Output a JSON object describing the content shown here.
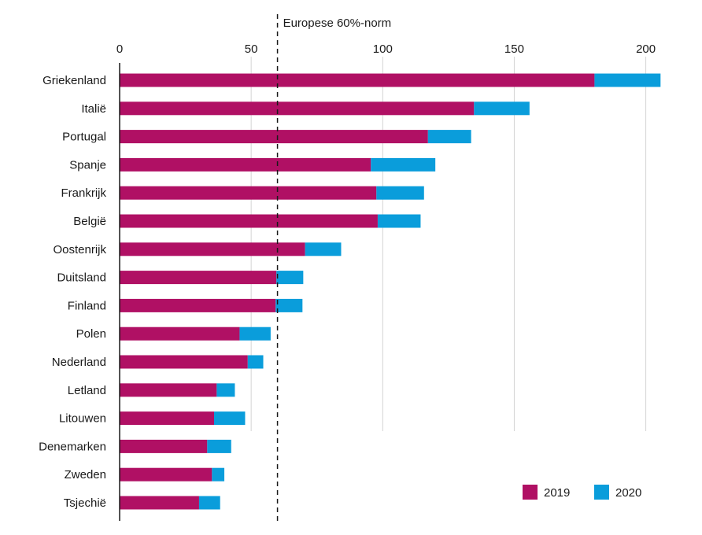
{
  "chart_data": {
    "type": "bar",
    "orientation": "horizontal",
    "stacked": true,
    "title": "",
    "xlabel": "",
    "ylabel": "",
    "xlim": [
      0,
      205
    ],
    "xticks": [
      0,
      50,
      100,
      150,
      200
    ],
    "grid": true,
    "legend_position": "bottom-right",
    "categories": [
      "Griekenland",
      "Italië",
      "Portugal",
      "Spanje",
      "Frankrijk",
      "België",
      "Oostenrijk",
      "Duitsland",
      "Finland",
      "Polen",
      "Nederland",
      "Letland",
      "Litouwen",
      "Denemarken",
      "Zweden",
      "Tsjechië"
    ],
    "series": [
      {
        "name": "2019",
        "color": "#b01064",
        "values": [
          180.5,
          134.7,
          117.2,
          95.5,
          97.6,
          98.1,
          70.5,
          59.6,
          59.3,
          45.6,
          48.7,
          36.9,
          35.9,
          33.3,
          35.1,
          30.2
        ]
      },
      {
        "name": "2020",
        "color": "#0a9ddb",
        "values": [
          25.1,
          21.1,
          16.4,
          24.5,
          18.1,
          16.3,
          13.7,
          10.2,
          10.2,
          11.8,
          5.9,
          6.9,
          11.8,
          9.1,
          4.7,
          8.0
        ]
      }
    ],
    "reference_line": {
      "value": 60,
      "label": "Europese 60%-norm",
      "style": "dashed"
    }
  }
}
